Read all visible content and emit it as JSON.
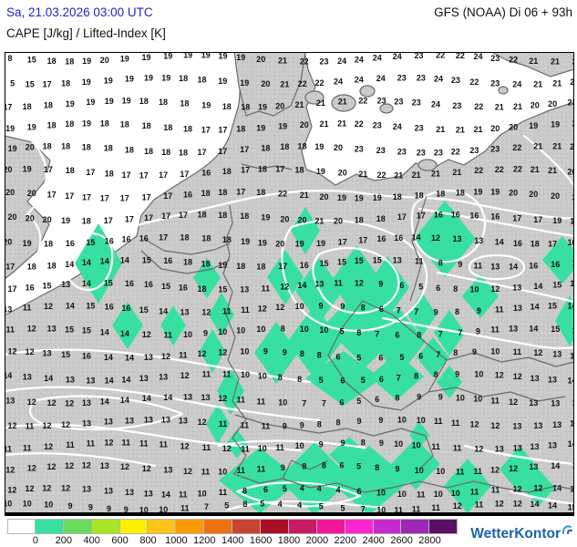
{
  "header": {
    "datetime": "Sa, 21.03.2026 03:00 UTC",
    "model_run": "GFS (NOAA) Di 06 + 93h",
    "parameter": "CAPE [J/kg] / Lifted-Index [K]"
  },
  "legend": {
    "labels": [
      "0",
      "200",
      "400",
      "600",
      "800",
      "1000",
      "1200",
      "1400",
      "1600",
      "1800",
      "2000",
      "2200",
      "2400",
      "2600",
      "2800"
    ],
    "cell_colors": [
      "#ffffff",
      "#37e0a0",
      "#69db5e",
      "#a7e522",
      "#fbf000",
      "#fcc418",
      "#fc9b06",
      "#ef7114",
      "#c64430",
      "#a91021",
      "#ca1a67",
      "#f2169d",
      "#fd25cd",
      "#c728d0",
      "#9d28b3",
      "#5d0f68"
    ]
  },
  "branding": {
    "logo_text": "WetterKontor"
  },
  "colors": {
    "header_date_blue": "#2222cc",
    "logo_blue": "#1e62ad",
    "land_gray": "#cacaca",
    "sea_white": "#ffffff",
    "cape_green": "#37e0a0",
    "contour_white": "#ffffff",
    "border_gray": "#6a6a6a"
  },
  "map": {
    "description": "Lifted-Index values [K] plotted on grid; green shading = CAPE 0-200 J/kg",
    "grid_values": [
      [
        8,
        15,
        18,
        18,
        19,
        20,
        19,
        19,
        19,
        19,
        19,
        19,
        19,
        20,
        21,
        22,
        23,
        24,
        24,
        24,
        24,
        23,
        22,
        22,
        24,
        23,
        22,
        21,
        21,
        22
      ],
      [
        5,
        15,
        17,
        18,
        19,
        19,
        19,
        19,
        19,
        18,
        18,
        19,
        19,
        20,
        21,
        22,
        22,
        24,
        24,
        24,
        23,
        23,
        24,
        23,
        22,
        23,
        24,
        21,
        21,
        23
      ],
      [
        17,
        18,
        18,
        19,
        19,
        19,
        19,
        18,
        18,
        18,
        19,
        18,
        18,
        19,
        20,
        21,
        21,
        21,
        22,
        23,
        23,
        23,
        24,
        23,
        22,
        21,
        21,
        20,
        20,
        23
      ],
      [
        19,
        19,
        18,
        18,
        19,
        18,
        18,
        18,
        18,
        18,
        17,
        17,
        18,
        19,
        19,
        20,
        21,
        21,
        22,
        23,
        24,
        23,
        21,
        21,
        21,
        20,
        20,
        19,
        19,
        20
      ],
      [
        19,
        20,
        18,
        18,
        18,
        18,
        18,
        18,
        18,
        18,
        17,
        17,
        17,
        18,
        18,
        18,
        19,
        20,
        23,
        23,
        23,
        23,
        23,
        22,
        23,
        23,
        22,
        21,
        21,
        22
      ],
      [
        20,
        19,
        17,
        18,
        17,
        18,
        17,
        17,
        17,
        17,
        16,
        18,
        17,
        18,
        17,
        18,
        19,
        20,
        21,
        22,
        21,
        21,
        21,
        21,
        22,
        22,
        22,
        21,
        21,
        20
      ],
      [
        20,
        20,
        17,
        17,
        17,
        17,
        17,
        17,
        17,
        16,
        18,
        18,
        17,
        18,
        22,
        21,
        20,
        19,
        19,
        19,
        18,
        18,
        18,
        18,
        19,
        19,
        20,
        20,
        20,
        20
      ],
      [
        20,
        20,
        20,
        19,
        18,
        17,
        17,
        17,
        17,
        17,
        18,
        18,
        18,
        19,
        20,
        20,
        21,
        20,
        18,
        18,
        17,
        17,
        16,
        16,
        16,
        16,
        17,
        17,
        19,
        17
      ],
      [
        20,
        19,
        18,
        16,
        15,
        16,
        16,
        16,
        17,
        18,
        18,
        18,
        19,
        19,
        20,
        19,
        19,
        17,
        17,
        16,
        16,
        14,
        12,
        13,
        13,
        14,
        16,
        18,
        17,
        16
      ],
      [
        17,
        18,
        18,
        14,
        14,
        14,
        14,
        15,
        16,
        18,
        18,
        19,
        18,
        18,
        17,
        16,
        15,
        15,
        15,
        15,
        13,
        11,
        8,
        9,
        11,
        13,
        14,
        16,
        16,
        17
      ],
      [
        17,
        16,
        15,
        13,
        14,
        15,
        16,
        16,
        15,
        16,
        18,
        15,
        13,
        11,
        12,
        14,
        13,
        11,
        12,
        9,
        6,
        5,
        6,
        8,
        10,
        12,
        13,
        14,
        15,
        16
      ],
      [
        13,
        11,
        12,
        14,
        15,
        16,
        16,
        15,
        14,
        13,
        12,
        11,
        11,
        12,
        12,
        10,
        9,
        9,
        8,
        6,
        7,
        7,
        9,
        8,
        9,
        11,
        13,
        14,
        15,
        14
      ],
      [
        11,
        12,
        13,
        15,
        15,
        14,
        14,
        12,
        11,
        10,
        9,
        10,
        10,
        10,
        8,
        10,
        10,
        5,
        8,
        7,
        6,
        8,
        7,
        7,
        9,
        11,
        13,
        14,
        15,
        16
      ],
      [
        12,
        12,
        13,
        15,
        16,
        14,
        14,
        13,
        12,
        11,
        12,
        12,
        10,
        9,
        9,
        8,
        8,
        6,
        5,
        6,
        5,
        6,
        7,
        8,
        9,
        10,
        11,
        12,
        13,
        14
      ],
      [
        14,
        13,
        14,
        13,
        13,
        14,
        14,
        13,
        13,
        12,
        11,
        11,
        10,
        10,
        8,
        8,
        5,
        6,
        5,
        6,
        7,
        8,
        8,
        9,
        10,
        12,
        12,
        13,
        13,
        14
      ],
      [
        13,
        12,
        12,
        12,
        13,
        14,
        14,
        14,
        14,
        13,
        13,
        12,
        11,
        11,
        10,
        7,
        7,
        6,
        5,
        6,
        8,
        9,
        9,
        10,
        10,
        11,
        12,
        13,
        13,
        14
      ],
      [
        12,
        11,
        12,
        12,
        13,
        13,
        13,
        13,
        13,
        13,
        12,
        11,
        11,
        11,
        9,
        9,
        8,
        8,
        9,
        9,
        10,
        10,
        11,
        11,
        12,
        12,
        13,
        13,
        13,
        14
      ],
      [
        11,
        11,
        12,
        11,
        11,
        12,
        11,
        11,
        11,
        12,
        11,
        12,
        11,
        10,
        11,
        10,
        9,
        9,
        8,
        9,
        10,
        10,
        11,
        11,
        12,
        13,
        13,
        13,
        13,
        14
      ],
      [
        12,
        12,
        12,
        12,
        12,
        13,
        12,
        12,
        13,
        12,
        11,
        10,
        11,
        11,
        9,
        8,
        8,
        6,
        5,
        8,
        9,
        10,
        10,
        11,
        11,
        12,
        12,
        13,
        14,
        15
      ],
      [
        12,
        12,
        12,
        12,
        13,
        13,
        13,
        13,
        14,
        11,
        10,
        11,
        8,
        6,
        5,
        4,
        4,
        4,
        6,
        10,
        10,
        11,
        10,
        10,
        11,
        11,
        12,
        12,
        14,
        14
      ],
      [
        10,
        10,
        10,
        9,
        9,
        9,
        9,
        10,
        10,
        11,
        7,
        5,
        8,
        5,
        4,
        4,
        5,
        5,
        7,
        10,
        11,
        11,
        11,
        12,
        11,
        12,
        12,
        14,
        14,
        15
      ]
    ]
  }
}
